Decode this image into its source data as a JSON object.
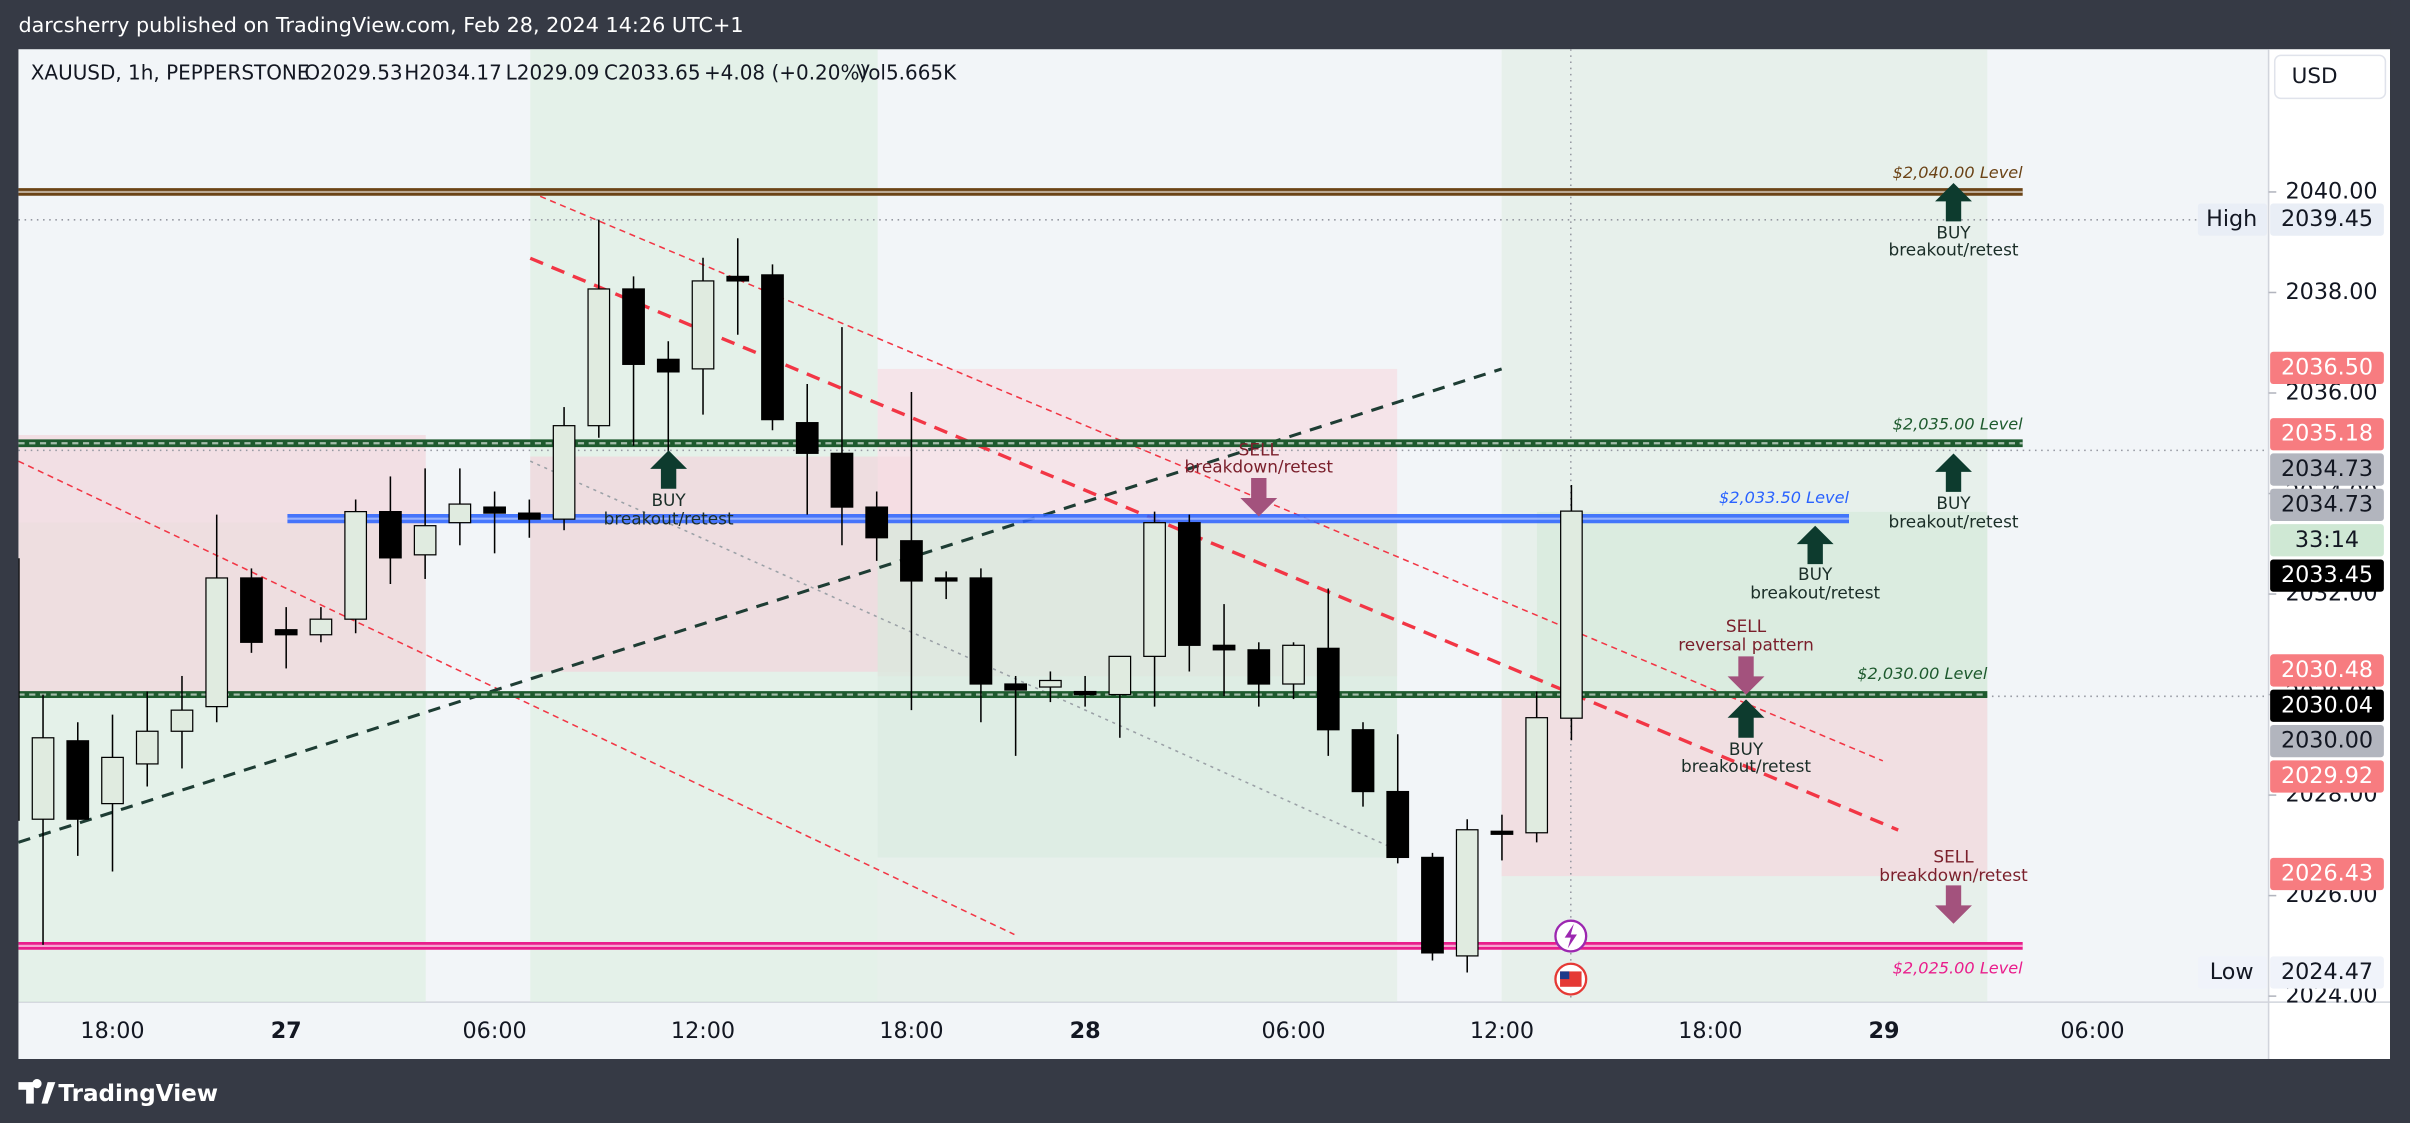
{
  "top_bar": {
    "publisher": "darcsherry published on TradingView.com, Feb 28, 2024 14:26 UTC+1"
  },
  "legend": {
    "symbol": "XAUUSD, 1h, PEPPERSTONE",
    "open": "O2029.53",
    "high": "H2034.17",
    "low": "L2029.09",
    "close": "C2033.65",
    "change": "+4.08 (+0.20%)",
    "volume": "Vol5.665K"
  },
  "currency": "USD",
  "footer": {
    "brand": "TradingView"
  },
  "chart_data": {
    "type": "candlestick",
    "categories": [
      null,
      null,
      null,
      "18:00",
      null,
      null,
      null,
      null,
      "27",
      null,
      null,
      null,
      null,
      null,
      "06:00",
      null,
      null,
      null,
      null,
      null,
      "12:00",
      null,
      null,
      null,
      null,
      null,
      "18:00",
      null,
      null,
      null,
      null,
      "28",
      null,
      null,
      null,
      null,
      null,
      "06:00",
      null,
      null,
      null,
      null,
      null,
      "12:00",
      null,
      null,
      null,
      null,
      null,
      "18:00",
      null,
      null,
      null,
      null,
      "29",
      null,
      null,
      null,
      null,
      null,
      "06:00",
      null,
      null,
      null,
      null
    ],
    "open": [
      2032.7,
      2027.52,
      2029.08,
      2027.83,
      2028.62,
      2029.27,
      2029.76,
      2032.32,
      2031.29,
      2031.19,
      2031.5,
      2033.64,
      2032.78,
      2033.42,
      2033.73,
      2033.61,
      2033.49,
      2035.35,
      2038.07,
      2036.67,
      2036.48,
      2038.32,
      2038.35,
      2035.41,
      2034.8,
      2033.73,
      2033.06,
      2032.32,
      2032.32,
      2030.21,
      2030.15,
      2030.06,
      2030.0,
      2030.76,
      2033.42,
      2030.98,
      2030.89,
      2030.21,
      2030.92,
      2029.3,
      2028.07,
      2026.76,
      2024.8,
      2027.28,
      2027.25,
      2029.53,
      null,
      null,
      null,
      null,
      null,
      null,
      null,
      null,
      null,
      null,
      null,
      null,
      null,
      null,
      null,
      null,
      null,
      null,
      null
    ],
    "high": [
      2033,
      2030.0,
      2029.45,
      2029.6,
      2030.06,
      2030.37,
      2033.58,
      2032.51,
      2031.74,
      2031.74,
      2033.88,
      2034.34,
      2034.5,
      2034.5,
      2034.04,
      2033.88,
      2035.72,
      2039.45,
      2038.32,
      2037.03,
      2038.69,
      2039.08,
      2038.56,
      2036.18,
      2037.31,
      2034.04,
      2036.02,
      2032.45,
      2032.51,
      2030.37,
      2030.46,
      2030.37,
      2030.76,
      2033.64,
      2033.58,
      2031.8,
      2031.04,
      2031.04,
      2032.11,
      2029.45,
      2029.21,
      2026.85,
      2027.52,
      2027.61,
      2030.06,
      2034.17,
      null,
      null,
      null,
      null,
      null,
      null,
      null,
      null,
      null,
      null,
      null,
      null,
      null,
      null,
      null,
      null,
      null,
      null,
      null
    ],
    "low": [
      2027.3,
      2025.02,
      2026.79,
      2026.48,
      2028.17,
      2028.53,
      2029.45,
      2030.83,
      2030.52,
      2031.04,
      2031.22,
      2032.2,
      2032.3,
      2032.97,
      2032.81,
      2033.12,
      2033.27,
      2035.11,
      2034.95,
      2034.8,
      2035.57,
      2037.16,
      2035.26,
      2033.58,
      2032.97,
      2032.66,
      2029.69,
      2031.9,
      2029.45,
      2028.78,
      2029.85,
      2029.76,
      2029.14,
      2029.76,
      2030.46,
      2029.97,
      2029.76,
      2029.91,
      2028.78,
      2027.77,
      2026.64,
      2024.71,
      2024.47,
      2026.7,
      2027.06,
      2029.09,
      null,
      null,
      null,
      null,
      null,
      null,
      null,
      null,
      null,
      null,
      null,
      null,
      null,
      null,
      null,
      null,
      null,
      null,
      null
    ],
    "close": [
      2027.5,
      2029.14,
      2027.52,
      2028.75,
      2029.27,
      2029.69,
      2032.32,
      2031.04,
      2031.19,
      2031.5,
      2033.64,
      2032.72,
      2033.36,
      2033.79,
      2033.61,
      2033.49,
      2035.35,
      2038.07,
      2036.57,
      2036.42,
      2038.23,
      2038.23,
      2035.47,
      2034.8,
      2033.73,
      2033.12,
      2032.26,
      2032.26,
      2030.21,
      2030.09,
      2030.28,
      2030.0,
      2030.76,
      2033.42,
      2030.98,
      2030.89,
      2030.21,
      2030.98,
      2029.3,
      2028.07,
      2026.76,
      2024.86,
      2027.31,
      2027.22,
      2029.54,
      2033.65,
      null,
      null,
      null,
      null,
      null,
      null,
      null,
      null,
      null,
      null,
      null,
      null,
      null,
      null,
      null,
      null,
      null,
      null,
      null
    ],
    "up_color": "#e0ebe0",
    "down_color": "#000000",
    "wick_color": "#000000",
    "ylim": [
      2023.88,
      2042.84
    ],
    "yticks": [
      {
        "value": 2024,
        "label": "2024.00"
      },
      {
        "value": 2026,
        "label": "2026.00"
      },
      {
        "value": 2028,
        "label": "2028.00"
      },
      {
        "value": 2030,
        "label": "2030.00"
      },
      {
        "value": 2032,
        "label": "2032.00"
      },
      {
        "value": 2034,
        "label": "2034.00"
      },
      {
        "value": 2036,
        "label": "2036.00"
      },
      {
        "value": 2038,
        "label": "2038.00"
      },
      {
        "value": 2040,
        "label": "2040.00"
      }
    ],
    "levels": [
      {
        "value": 2040,
        "label": "$2,040.00 Level",
        "color": "#6b4316"
      },
      {
        "value": 2035,
        "label": "$2,035.00 Level",
        "color": "#1e5a2e"
      },
      {
        "value": 2033.5,
        "label": "$2,033.50 Level",
        "color": "#2962ff"
      },
      {
        "value": 2030,
        "label": "$2,030.00 Level",
        "color": "#1e5a2e"
      },
      {
        "value": 2025,
        "label": "$2,025.00 Level",
        "color": "#e91e8c"
      }
    ],
    "annotations": [
      {
        "title": "BUY",
        "text": "breakout/retest"
      },
      {
        "title": "SELL",
        "text": "breakdown/retest"
      },
      {
        "title": "BUY",
        "text": "breakout/retest"
      },
      {
        "title": "BUY",
        "text": "breakout/retest"
      },
      {
        "title": "BUY",
        "text": "breakout/retest"
      },
      {
        "title": "SELL",
        "text": "reversal pattern"
      },
      {
        "title": "BUY",
        "text": "breakout/retest"
      },
      {
        "title": "SELL",
        "text": "breakdown/retest"
      }
    ],
    "price_tags": [
      {
        "value": 2039.45,
        "label": "2039.45",
        "caption": "High",
        "color": "#e9eef6",
        "text_color": "#131722"
      },
      {
        "value": 2036.5,
        "label": "2036.50",
        "color": "#f77c80",
        "text_color": "#ffffff"
      },
      {
        "value": 2035.18,
        "label": "2035.18",
        "color": "#f77c80",
        "text_color": "#ffffff"
      },
      {
        "value": 2034.73,
        "label": "2034.73",
        "color": "#b2b5be",
        "text_color": "#131722"
      },
      {
        "value": 2034.73,
        "label": "2034.73",
        "color": "#b2b5be",
        "text_color": "#131722"
      },
      {
        "value": 2033.45,
        "label": "2033.45",
        "countdown": "33:14",
        "countdown_color": "#cfe8d4",
        "color": "#000000",
        "text_color": "#ffffff"
      },
      {
        "value": 2030.48,
        "label": "2030.48",
        "color": "#f77c80",
        "text_color": "#ffffff"
      },
      {
        "value": 2030.04,
        "label": "2030.04",
        "color": "#000000",
        "text_color": "#ffffff"
      },
      {
        "value": 2030,
        "label": "2030.00",
        "color": "#b2b5be",
        "text_color": "#131722"
      },
      {
        "value": 2029.92,
        "label": "2029.92",
        "color": "#f77c80",
        "text_color": "#ffffff"
      },
      {
        "value": 2026.43,
        "label": "2026.43",
        "color": "#f77c80",
        "text_color": "#ffffff"
      },
      {
        "value": 2024.47,
        "label": "2024.47",
        "caption": "Low",
        "color": "#f0f3fa",
        "text_color": "#131722"
      }
    ]
  }
}
